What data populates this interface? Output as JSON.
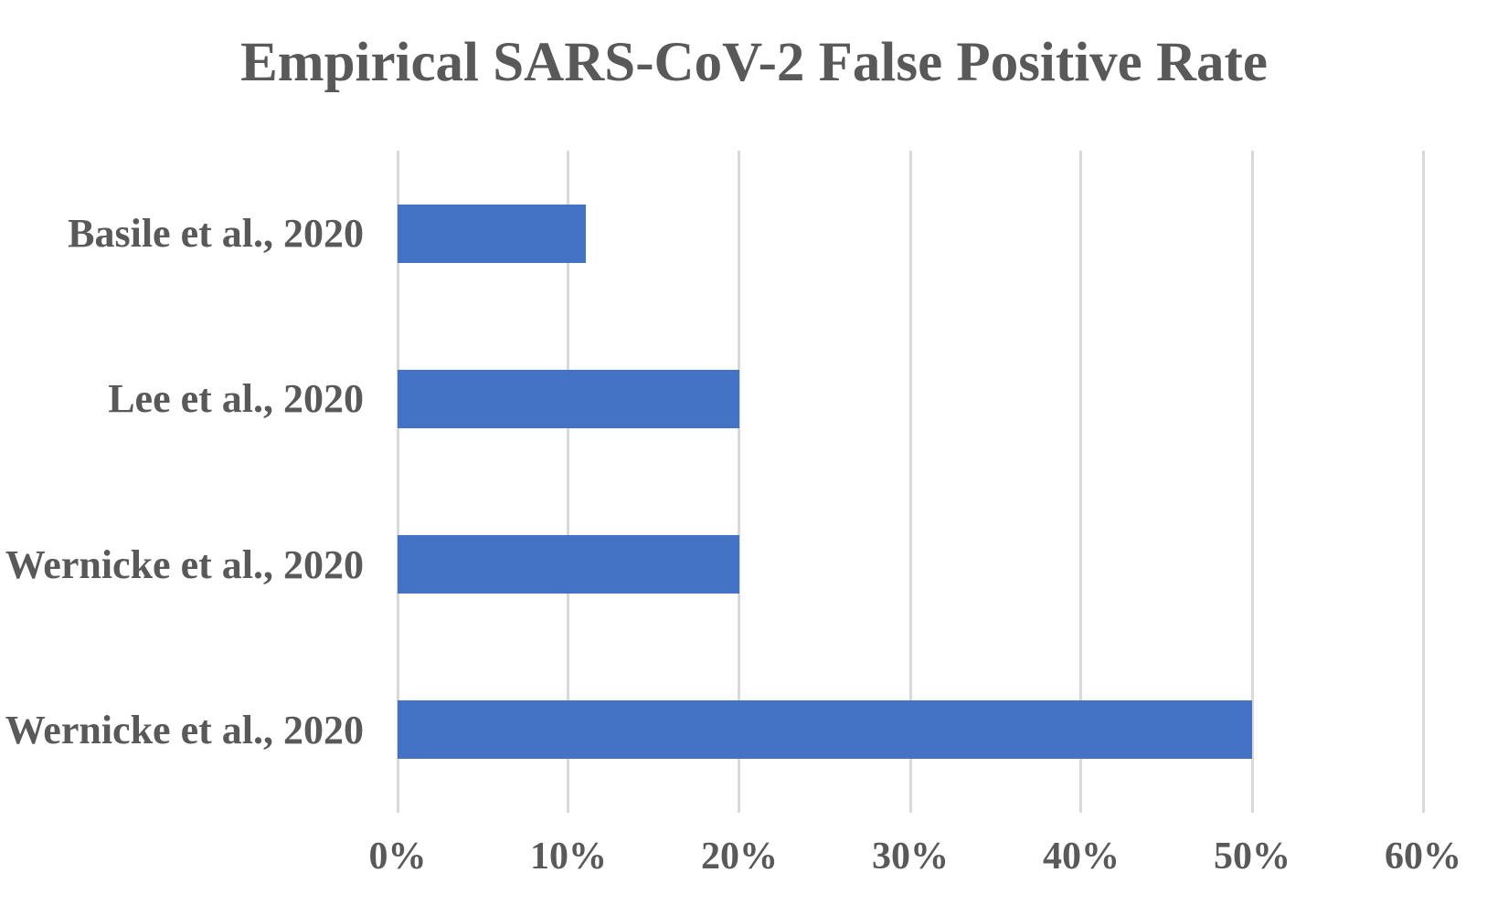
{
  "title": "Empirical SARS-CoV-2 False Positive Rate",
  "colors": {
    "bar": "#4472C4",
    "gridline": "#D9D9D9",
    "text": "#595959",
    "background": "#FFFFFF"
  },
  "chart_data": {
    "type": "bar",
    "orientation": "horizontal",
    "title": "Empirical SARS-CoV-2 False Positive Rate",
    "categories": [
      "Basile et al., 2020",
      "Lee et al., 2020",
      "Wernicke et al., 2020",
      "Wernicke et al., 2020"
    ],
    "values": [
      11,
      20,
      20,
      50
    ],
    "unit": "%",
    "xlabel": "",
    "ylabel": "",
    "xlim": [
      0,
      60
    ],
    "x_tick_values": [
      0,
      10,
      20,
      30,
      40,
      50,
      60
    ],
    "x_ticks": [
      "0%",
      "10%",
      "20%",
      "30%",
      "40%",
      "50%",
      "60%"
    ],
    "grid": "vertical-only",
    "legend": "none",
    "data_labels": "none"
  }
}
